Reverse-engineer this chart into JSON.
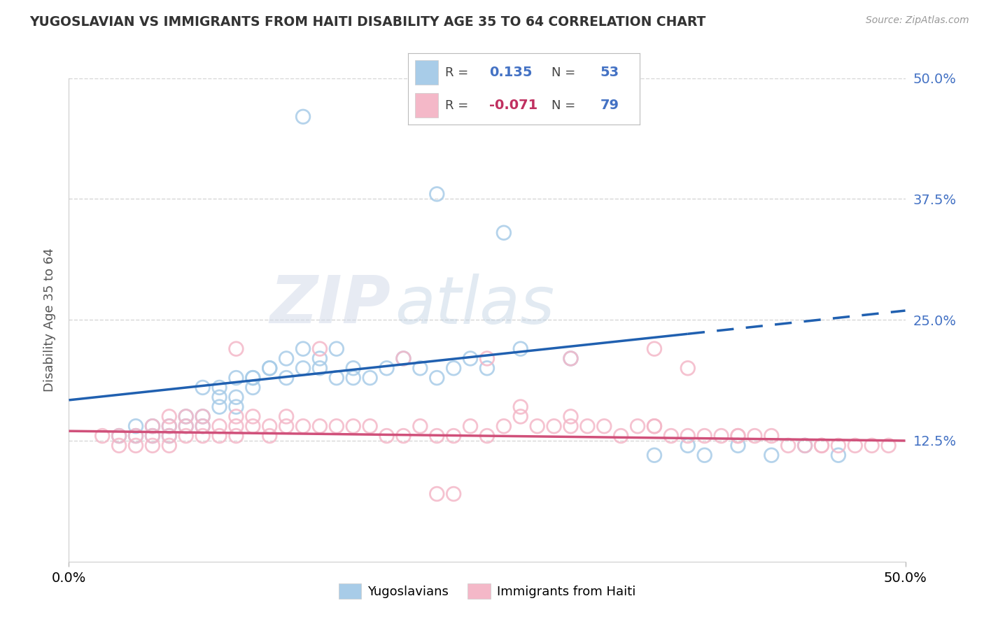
{
  "title": "YUGOSLAVIAN VS IMMIGRANTS FROM HAITI DISABILITY AGE 35 TO 64 CORRELATION CHART",
  "source": "Source: ZipAtlas.com",
  "ylabel": "Disability Age 35 to 64",
  "xlim": [
    0.0,
    0.5
  ],
  "ylim": [
    0.0,
    0.5
  ],
  "y_ticks": [
    0.125,
    0.25,
    0.375,
    0.5
  ],
  "legend_R1": "0.135",
  "legend_N1": "53",
  "legend_R2": "-0.071",
  "legend_N2": "79",
  "blue_color": "#a8cce8",
  "pink_color": "#f4b8c8",
  "trend_blue": "#2060b0",
  "trend_pink": "#d0507a",
  "watermark_zip": "ZIP",
  "watermark_atlas": "atlas",
  "background_color": "#ffffff",
  "grid_color": "#cccccc",
  "blue_scatter_x": [
    0.14,
    0.22,
    0.26,
    0.03,
    0.04,
    0.04,
    0.05,
    0.05,
    0.06,
    0.06,
    0.07,
    0.07,
    0.08,
    0.08,
    0.09,
    0.09,
    0.1,
    0.1,
    0.11,
    0.11,
    0.12,
    0.13,
    0.14,
    0.15,
    0.16,
    0.17,
    0.18,
    0.19,
    0.2,
    0.21,
    0.22,
    0.23,
    0.24,
    0.25,
    0.27,
    0.3,
    0.35,
    0.37,
    0.38,
    0.4,
    0.42,
    0.44,
    0.46,
    0.08,
    0.09,
    0.1,
    0.11,
    0.12,
    0.13,
    0.14,
    0.15,
    0.16,
    0.17
  ],
  "blue_scatter_y": [
    0.46,
    0.38,
    0.34,
    0.13,
    0.13,
    0.14,
    0.13,
    0.14,
    0.13,
    0.14,
    0.14,
    0.15,
    0.14,
    0.15,
    0.16,
    0.17,
    0.16,
    0.17,
    0.18,
    0.19,
    0.2,
    0.21,
    0.22,
    0.21,
    0.22,
    0.2,
    0.19,
    0.2,
    0.21,
    0.2,
    0.19,
    0.2,
    0.21,
    0.2,
    0.22,
    0.21,
    0.11,
    0.12,
    0.11,
    0.12,
    0.11,
    0.12,
    0.11,
    0.18,
    0.18,
    0.19,
    0.19,
    0.2,
    0.19,
    0.2,
    0.2,
    0.19,
    0.19
  ],
  "pink_scatter_x": [
    0.02,
    0.03,
    0.03,
    0.04,
    0.04,
    0.05,
    0.05,
    0.05,
    0.06,
    0.06,
    0.06,
    0.06,
    0.07,
    0.07,
    0.07,
    0.08,
    0.08,
    0.08,
    0.09,
    0.09,
    0.1,
    0.1,
    0.1,
    0.11,
    0.11,
    0.12,
    0.12,
    0.13,
    0.13,
    0.14,
    0.15,
    0.16,
    0.17,
    0.18,
    0.19,
    0.2,
    0.21,
    0.22,
    0.23,
    0.24,
    0.25,
    0.26,
    0.27,
    0.28,
    0.29,
    0.3,
    0.31,
    0.32,
    0.33,
    0.34,
    0.35,
    0.36,
    0.37,
    0.38,
    0.39,
    0.4,
    0.41,
    0.42,
    0.43,
    0.44,
    0.45,
    0.46,
    0.47,
    0.48,
    0.49,
    0.27,
    0.3,
    0.35,
    0.4,
    0.45,
    0.1,
    0.15,
    0.2,
    0.25,
    0.3,
    0.35,
    0.37,
    0.22,
    0.23
  ],
  "pink_scatter_y": [
    0.13,
    0.12,
    0.13,
    0.12,
    0.13,
    0.12,
    0.13,
    0.14,
    0.12,
    0.13,
    0.14,
    0.15,
    0.13,
    0.14,
    0.15,
    0.13,
    0.14,
    0.15,
    0.13,
    0.14,
    0.13,
    0.14,
    0.15,
    0.14,
    0.15,
    0.13,
    0.14,
    0.14,
    0.15,
    0.14,
    0.14,
    0.14,
    0.14,
    0.14,
    0.13,
    0.13,
    0.14,
    0.13,
    0.13,
    0.14,
    0.13,
    0.14,
    0.15,
    0.14,
    0.14,
    0.14,
    0.14,
    0.14,
    0.13,
    0.14,
    0.14,
    0.13,
    0.13,
    0.13,
    0.13,
    0.13,
    0.13,
    0.13,
    0.12,
    0.12,
    0.12,
    0.12,
    0.12,
    0.12,
    0.12,
    0.16,
    0.15,
    0.14,
    0.13,
    0.12,
    0.22,
    0.22,
    0.21,
    0.21,
    0.21,
    0.22,
    0.2,
    0.07,
    0.07
  ]
}
